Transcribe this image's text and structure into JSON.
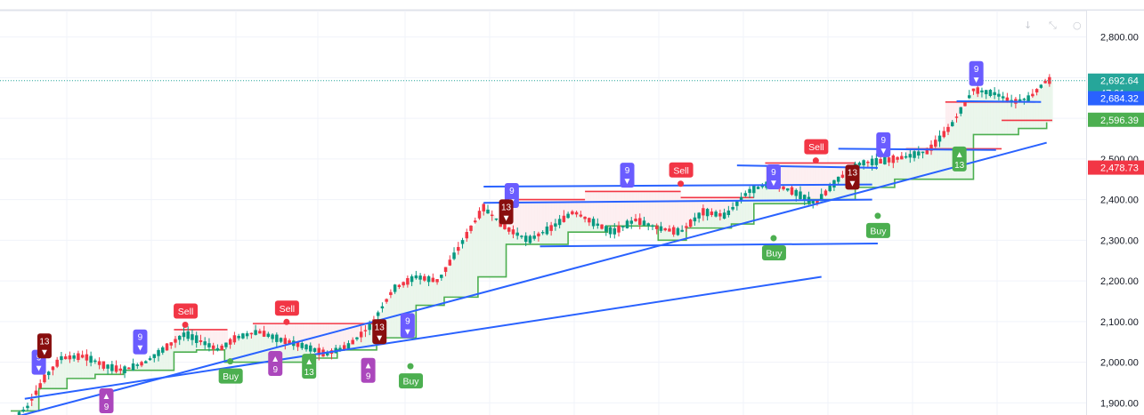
{
  "toolbar_icons": [
    {
      "icon": "arrow-down-icon",
      "glyph": "↓"
    },
    {
      "icon": "collapse-icon",
      "glyph": "⤡"
    },
    {
      "icon": "settings-icon",
      "glyph": "○"
    }
  ],
  "chart_data": {
    "type": "candlestick",
    "y_axis": {
      "ylim": [
        1870,
        2830
      ],
      "ticks": [
        1900,
        2000,
        2100,
        2200,
        2300,
        2400,
        2500,
        2600,
        2700,
        2800
      ],
      "tick_labels": [
        "1,900.00",
        "2,000.00",
        "2,100.00",
        "2,200.00",
        "2,300.00",
        "2,400.00",
        "2,500.00",
        "2,600.00",
        "2,700.00",
        "2,800.00"
      ],
      "position": "right"
    },
    "price_tags": [
      {
        "name": "last",
        "value": 2692.64,
        "label": "2,692.64",
        "sub": "47:01",
        "color": "#26a69a"
      },
      {
        "name": "blue",
        "value": 2684.32,
        "label": "2,684.32",
        "sub": "",
        "color": "#2962ff"
      },
      {
        "name": "green",
        "value": 2596.39,
        "label": "2,596.39",
        "sub": "",
        "color": "#4caf50"
      },
      {
        "name": "red",
        "value": 2478.73,
        "label": "2,478.73",
        "sub": "",
        "color": "#f23645"
      }
    ],
    "colors": {
      "up": "#089981",
      "down": "#f23645",
      "support": "#4caf50",
      "resistance": "#f23645",
      "trend": "#2962ff",
      "count9": "#6a5cff",
      "count13": "#880e0e",
      "purple": "#ab47bc",
      "buy": "#4caf50",
      "sell": "#f23645"
    },
    "bar_count": 240,
    "price_path": [
      [
        0,
        1855
      ],
      [
        6,
        1890
      ],
      [
        12,
        1960
      ],
      [
        18,
        2010
      ],
      [
        26,
        2015
      ],
      [
        34,
        1990
      ],
      [
        40,
        1980
      ],
      [
        48,
        2000
      ],
      [
        56,
        2040
      ],
      [
        62,
        2070
      ],
      [
        68,
        2050
      ],
      [
        74,
        2030
      ],
      [
        80,
        2060
      ],
      [
        88,
        2075
      ],
      [
        96,
        2055
      ],
      [
        104,
        2040
      ],
      [
        112,
        2020
      ],
      [
        120,
        2040
      ],
      [
        128,
        2090
      ],
      [
        136,
        2180
      ],
      [
        144,
        2210
      ],
      [
        152,
        2200
      ],
      [
        160,
        2290
      ],
      [
        168,
        2380
      ],
      [
        176,
        2330
      ],
      [
        184,
        2300
      ],
      [
        192,
        2330
      ],
      [
        200,
        2370
      ],
      [
        208,
        2340
      ],
      [
        214,
        2320
      ],
      [
        222,
        2350
      ],
      [
        230,
        2330
      ],
      [
        238,
        2320
      ],
      [
        246,
        2370
      ],
      [
        254,
        2360
      ],
      [
        262,
        2420
      ],
      [
        270,
        2440
      ],
      [
        278,
        2420
      ],
      [
        286,
        2390
      ],
      [
        294,
        2450
      ],
      [
        302,
        2490
      ],
      [
        310,
        2495
      ],
      [
        318,
        2505
      ],
      [
        326,
        2520
      ],
      [
        334,
        2580
      ],
      [
        342,
        2670
      ],
      [
        350,
        2660
      ],
      [
        356,
        2640
      ],
      [
        362,
        2650
      ],
      [
        368,
        2693
      ]
    ],
    "support_steps": [
      [
        0,
        1880
      ],
      [
        10,
        1935
      ],
      [
        20,
        1960
      ],
      [
        30,
        1970
      ],
      [
        40,
        1980
      ],
      [
        58,
        2025
      ],
      [
        66,
        2030
      ],
      [
        76,
        2000
      ],
      [
        98,
        2000
      ],
      [
        104,
        2010
      ],
      [
        116,
        2030
      ],
      [
        130,
        2060
      ],
      [
        144,
        2140
      ],
      [
        154,
        2160
      ],
      [
        166,
        2210
      ],
      [
        176,
        2290
      ],
      [
        198,
        2320
      ],
      [
        212,
        2335
      ],
      [
        230,
        2300
      ],
      [
        240,
        2330
      ],
      [
        256,
        2340
      ],
      [
        264,
        2390
      ],
      [
        284,
        2400
      ],
      [
        300,
        2430
      ],
      [
        314,
        2450
      ],
      [
        330,
        2450
      ],
      [
        342,
        2560
      ],
      [
        358,
        2575
      ],
      [
        364,
        2575
      ],
      [
        368,
        2590
      ]
    ],
    "resistance_segments": [
      [
        58,
        77,
        2080
      ],
      [
        86,
        130,
        2095
      ],
      [
        177,
        204,
        2400
      ],
      [
        204,
        238,
        2420
      ],
      [
        238,
        264,
        2405
      ],
      [
        268,
        300,
        2490
      ],
      [
        318,
        352,
        2525
      ],
      [
        352,
        370,
        2595
      ],
      [
        332,
        364,
        2640
      ]
    ],
    "trendlines": [
      {
        "p1": [
          2,
          1866
        ],
        "p2": [
          368,
          2540
        ]
      },
      {
        "p1": [
          5,
          1910
        ],
        "p2": [
          288,
          2210
        ]
      },
      {
        "p1": [
          168,
          2432
        ],
        "p2": [
          306,
          2437
        ]
      },
      {
        "p1": [
          168,
          2392
        ],
        "p2": [
          306,
          2400
        ]
      },
      {
        "p1": [
          188,
          2285
        ],
        "p2": [
          308,
          2292
        ]
      },
      {
        "p1": [
          258,
          2484
        ],
        "p2": [
          308,
          2478
        ]
      },
      {
        "p1": [
          294,
          2525
        ],
        "p2": [
          350,
          2522
        ]
      },
      {
        "p1": [
          336,
          2642
        ],
        "p2": [
          366,
          2640
        ]
      }
    ],
    "signals": [
      {
        "type": "sell",
        "label": "Sell",
        "bar": 62,
        "price": 2092
      },
      {
        "type": "sell",
        "label": "Sell",
        "bar": 98,
        "price": 2099
      },
      {
        "type": "sell",
        "label": "Sell",
        "bar": 238,
        "price": 2439
      },
      {
        "type": "sell",
        "label": "Sell",
        "bar": 286,
        "price": 2496
      },
      {
        "type": "buy",
        "label": "Buy",
        "bar": 78,
        "price": 2002
      },
      {
        "type": "buy",
        "label": "Buy",
        "bar": 142,
        "price": 1990
      },
      {
        "type": "buy",
        "label": "Buy",
        "bar": 271,
        "price": 2305
      },
      {
        "type": "buy",
        "label": "Buy",
        "bar": 308,
        "price": 2360
      }
    ],
    "count_markers": [
      {
        "label": "9",
        "dir": "down",
        "color": "count9",
        "bar": 10,
        "price": 2000
      },
      {
        "label": "13",
        "dir": "down",
        "color": "count13",
        "bar": 12,
        "price": 2040
      },
      {
        "label": "9",
        "dir": "down",
        "color": "count9",
        "bar": 46,
        "price": 2050
      },
      {
        "label": "9",
        "dir": "up",
        "color": "purple",
        "bar": 34,
        "price": 1905
      },
      {
        "label": "9",
        "dir": "up",
        "color": "purple",
        "bar": 94,
        "price": 1997
      },
      {
        "label": "13",
        "dir": "up",
        "color": "support",
        "bar": 106,
        "price": 1990
      },
      {
        "label": "13",
        "dir": "down",
        "color": "count13",
        "bar": 131,
        "price": 2075
      },
      {
        "label": "9",
        "dir": "down",
        "color": "count9",
        "bar": 141,
        "price": 2090
      },
      {
        "label": "9",
        "dir": "up",
        "color": "purple",
        "bar": 127,
        "price": 1980
      },
      {
        "label": "9",
        "dir": "down",
        "color": "count9",
        "bar": 178,
        "price": 2410
      },
      {
        "label": "13",
        "dir": "down",
        "color": "count13",
        "bar": 176,
        "price": 2370
      },
      {
        "label": "9",
        "dir": "down",
        "color": "count9",
        "bar": 219,
        "price": 2460
      },
      {
        "label": "9",
        "dir": "down",
        "color": "count9",
        "bar": 271,
        "price": 2456
      },
      {
        "label": "13",
        "dir": "down",
        "color": "count13",
        "bar": 299,
        "price": 2455
      },
      {
        "label": "9",
        "dir": "down",
        "color": "count9",
        "bar": 310,
        "price": 2535
      },
      {
        "label": "13",
        "dir": "up",
        "color": "support",
        "bar": 337,
        "price": 2500
      },
      {
        "label": "9",
        "dir": "down",
        "color": "count9",
        "bar": 343,
        "price": 2710
      }
    ]
  }
}
